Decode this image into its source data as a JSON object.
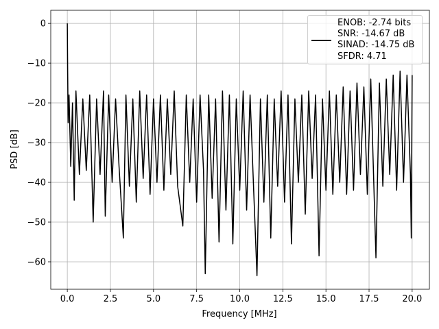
{
  "chart_data": {
    "type": "line",
    "xlabel": "Frequency [MHz]",
    "ylabel": "PSD [dB]",
    "xlim": [
      -0.96,
      21.0
    ],
    "ylim": [
      -66.9,
      3.3
    ],
    "xticks": [
      {
        "value": 0,
        "label": "0.0"
      },
      {
        "value": 2.5,
        "label": "2.5"
      },
      {
        "value": 5,
        "label": "5.0"
      },
      {
        "value": 7.5,
        "label": "7.5"
      },
      {
        "value": 10,
        "label": "10.0"
      },
      {
        "value": 12.5,
        "label": "12.5"
      },
      {
        "value": 15,
        "label": "15.0"
      },
      {
        "value": 17.5,
        "label": "17.5"
      },
      {
        "value": 20,
        "label": "20.0"
      }
    ],
    "yticks": [
      0,
      {
        "value": -10,
        "label": "−10"
      },
      {
        "value": -20,
        "label": "−20"
      },
      {
        "value": -30,
        "label": "−30"
      },
      {
        "value": -40,
        "label": "−40"
      },
      {
        "value": -50,
        "label": "−50"
      },
      {
        "value": -60,
        "label": "−60"
      }
    ],
    "grid": true,
    "legend": "upper right",
    "x": [
      0,
      0.02,
      0.05,
      0.1,
      0.2,
      0.3,
      0.4,
      0.5,
      0.7,
      0.9,
      1.1,
      1.3,
      1.5,
      1.7,
      1.9,
      2.1,
      2.2,
      2.4,
      2.6,
      2.8,
      3.0,
      3.25,
      3.4,
      3.6,
      3.8,
      4.0,
      4.2,
      4.4,
      4.6,
      4.8,
      5.0,
      5.2,
      5.4,
      5.6,
      5.8,
      6.0,
      6.2,
      6.4,
      6.7,
      6.9,
      7.1,
      7.3,
      7.5,
      7.7,
      7.9,
      8.0,
      8.2,
      8.4,
      8.6,
      8.8,
      9.0,
      9.2,
      9.4,
      9.6,
      9.8,
      10.0,
      10.2,
      10.4,
      10.6,
      10.8,
      11.0,
      11.2,
      11.4,
      11.6,
      11.8,
      12.0,
      12.2,
      12.4,
      12.6,
      12.8,
      13.0,
      13.2,
      13.4,
      13.6,
      13.8,
      14.0,
      14.2,
      14.4,
      14.6,
      14.8,
      15.0,
      15.2,
      15.4,
      15.6,
      15.8,
      16.0,
      16.2,
      16.4,
      16.6,
      16.8,
      17.0,
      17.2,
      17.4,
      17.6,
      17.9,
      18.1,
      18.3,
      18.5,
      18.7,
      18.9,
      19.1,
      19.3,
      19.5,
      19.7,
      19.9,
      19.95,
      20.0
    ],
    "series": [
      {
        "name": "ENOB: -2.74 bits\nSNR: -14.67 dB\nSINAD: -14.75 dB\nSFDR: 4.71",
        "color": "#000000",
        "values": [
          0,
          -12,
          -25,
          -18,
          -36,
          -20,
          -44.5,
          -17,
          -38,
          -19,
          -37,
          -18,
          -50,
          -19,
          -38,
          -17,
          -48.5,
          -18,
          -40,
          -19,
          -36,
          -54,
          -18,
          -41,
          -19,
          -45,
          -17,
          -39,
          -18,
          -43,
          -19,
          -40,
          -18,
          -42,
          -19,
          -38,
          -17,
          -41,
          -51,
          -18,
          -40,
          -19,
          -45,
          -18,
          -37,
          -63,
          -18,
          -44,
          -19,
          -55,
          -17,
          -47,
          -18,
          -55.5,
          -19,
          -42,
          -17,
          -47,
          -18,
          -41,
          -63.5,
          -19,
          -45,
          -18,
          -54,
          -19,
          -41,
          -17,
          -45,
          -18,
          -55.5,
          -19,
          -40,
          -18,
          -48,
          -17,
          -39,
          -18,
          -58.5,
          -19,
          -42,
          -17,
          -43,
          -18,
          -40,
          -16,
          -43,
          -17,
          -42,
          -15,
          -38,
          -16,
          -43,
          -14,
          -59,
          -15,
          -41,
          -14,
          -38,
          -13,
          -42,
          -12,
          -40,
          -13,
          -38,
          -54,
          -13
        ]
      }
    ]
  }
}
